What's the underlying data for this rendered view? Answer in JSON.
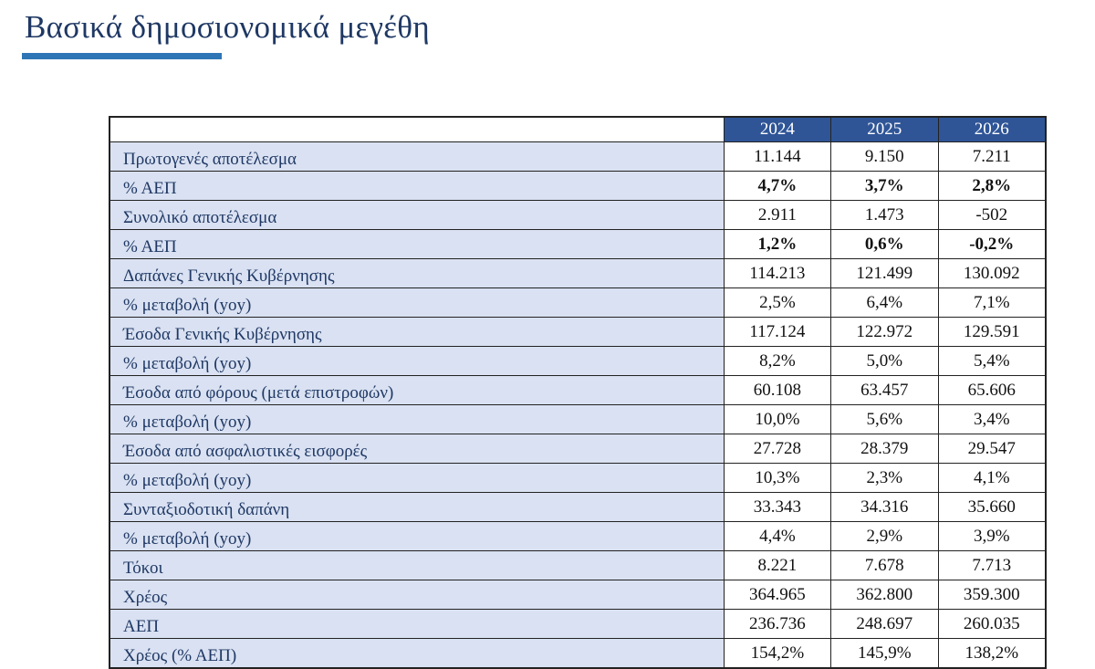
{
  "title": "Βασικά δημοσιονομικά μεγέθη",
  "colors": {
    "header": "#2f5597",
    "label_bg": "#d9e1f2",
    "title": "#1f3864",
    "accent": "#2e75b6"
  },
  "table": {
    "years": [
      "2024",
      "2025",
      "2026"
    ],
    "rows": [
      {
        "label": "Πρωτογενές αποτέλεσμα",
        "values": [
          "11.144",
          "9.150",
          "7.211"
        ],
        "bold": false
      },
      {
        "label": "% ΑΕΠ",
        "values": [
          "4,7%",
          "3,7%",
          "2,8%"
        ],
        "bold": true
      },
      {
        "label": "Συνολικό αποτέλεσμα",
        "values": [
          "2.911",
          "1.473",
          "-502"
        ],
        "bold": false
      },
      {
        "label": "% ΑΕΠ",
        "values": [
          "1,2%",
          "0,6%",
          "-0,2%"
        ],
        "bold": true
      },
      {
        "label": "Δαπάνες Γενικής Κυβέρνησης",
        "values": [
          "114.213",
          "121.499",
          "130.092"
        ],
        "bold": false
      },
      {
        "label": "% μεταβολή (yoy)",
        "values": [
          "2,5%",
          "6,4%",
          "7,1%"
        ],
        "bold": false
      },
      {
        "label": "Έσοδα Γενικής Κυβέρνησης",
        "values": [
          "117.124",
          "122.972",
          "129.591"
        ],
        "bold": false
      },
      {
        "label": "% μεταβολή (yoy)",
        "values": [
          "8,2%",
          "5,0%",
          "5,4%"
        ],
        "bold": false
      },
      {
        "label": "Έσοδα από φόρους (μετά επιστροφών)",
        "values": [
          "60.108",
          "63.457",
          "65.606"
        ],
        "bold": false
      },
      {
        "label": "% μεταβολή (yoy)",
        "values": [
          "10,0%",
          "5,6%",
          "3,4%"
        ],
        "bold": false
      },
      {
        "label": "Έσοδα από ασφαλιστικές εισφορές",
        "values": [
          "27.728",
          "28.379",
          "29.547"
        ],
        "bold": false
      },
      {
        "label": "% μεταβολή (yoy)",
        "values": [
          "10,3%",
          "2,3%",
          "4,1%"
        ],
        "bold": false
      },
      {
        "label": "Συνταξιοδοτική δαπάνη",
        "values": [
          "33.343",
          "34.316",
          "35.660"
        ],
        "bold": false
      },
      {
        "label": "% μεταβολή (yoy)",
        "values": [
          "4,4%",
          "2,9%",
          "3,9%"
        ],
        "bold": false
      },
      {
        "label": "Τόκοι",
        "values": [
          "8.221",
          "7.678",
          "7.713"
        ],
        "bold": false
      },
      {
        "label": "Χρέος",
        "values": [
          "364.965",
          "362.800",
          "359.300"
        ],
        "bold": false
      },
      {
        "label": "ΑΕΠ",
        "values": [
          "236.736",
          "248.697",
          "260.035"
        ],
        "bold": false
      },
      {
        "label": "Χρέος (% ΑΕΠ)",
        "values": [
          "154,2%",
          "145,9%",
          "138,2%"
        ],
        "bold": false
      }
    ]
  }
}
